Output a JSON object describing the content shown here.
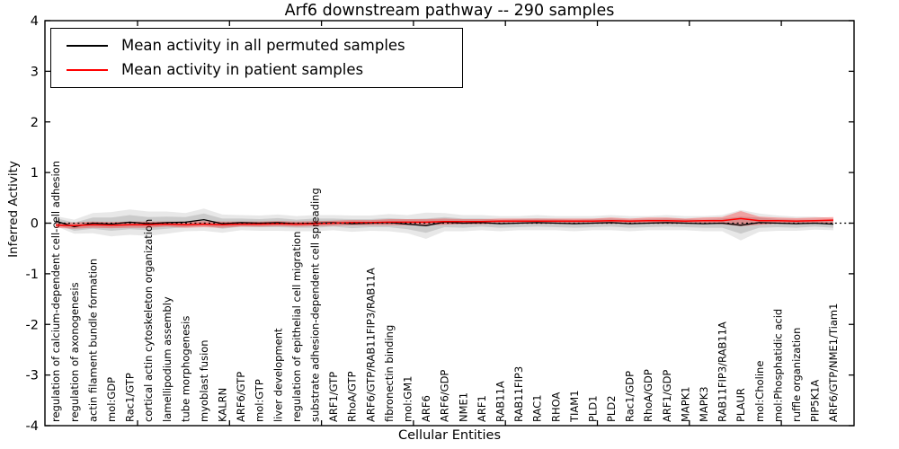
{
  "title": "Arf6 downstream pathway -- 290 samples",
  "axes": {
    "xlabel": "Cellular Entities",
    "ylabel": "Inferred Activity"
  },
  "legend": {
    "items": [
      {
        "label": "Mean activity in all permuted samples",
        "color": "#000000"
      },
      {
        "label": "Mean activity in patient samples",
        "color": "#ff0000"
      }
    ]
  },
  "chart_data": {
    "type": "line",
    "title": "Arf6 downstream pathway -- 290 samples",
    "xlabel": "Cellular Entities",
    "ylabel": "Inferred Activity",
    "ylim": [
      -4,
      4
    ],
    "yticks": [
      4,
      3,
      2,
      1,
      0,
      -1,
      -2,
      -3,
      -4
    ],
    "grid": false,
    "legend_position": "upper left",
    "categories": [
      "regulation of calcium-dependent cell-cell adhesion",
      "regulation of axonogenesis",
      "actin filament bundle formation",
      "mol:GDP",
      "Rac1/GTP",
      "cortical actin cytoskeleton organization",
      "lamellipodium assembly",
      "tube morphogenesis",
      "myoblast fusion",
      "KALRN",
      "ARF6/GTP",
      "mol:GTP",
      "liver development",
      "regulation of epithelial cell migration",
      "substrate adhesion-dependent cell spreading",
      "ARF1/GTP",
      "RhoA/GTP",
      "ARF6/GTP/RAB11FIP3/RAB11A",
      "fibronectin binding",
      "mol:GM1",
      "ARF6",
      "ARF6/GDP",
      "NME1",
      "ARF1",
      "RAB11A",
      "RAB11FIP3",
      "RAC1",
      "RHOA",
      "TIAM1",
      "PLD1",
      "PLD2",
      "Rac1/GDP",
      "RhoA/GDP",
      "ARF1/GDP",
      "MAPK1",
      "MAPK3",
      "RAB11FIP3/RAB11A",
      "PLAUR",
      "mol:Choline",
      "mol:Phosphatidic acid",
      "ruffle organization",
      "PIP5K1A",
      "ARF6/GTP/NME1/Tiam1"
    ],
    "series": [
      {
        "name": "Mean activity in all permuted samples",
        "color": "#000000",
        "style": "solid",
        "values": [
          0.04,
          -0.07,
          0.0,
          -0.02,
          0.02,
          -0.01,
          0.01,
          0.02,
          0.07,
          -0.01,
          0.01,
          0.0,
          0.01,
          -0.01,
          0.0,
          0.01,
          -0.01,
          0.0,
          0.01,
          -0.02,
          -0.05,
          0.02,
          0.0,
          0.01,
          -0.01,
          0.0,
          0.01,
          0.0,
          -0.01,
          0.0,
          0.01,
          -0.01,
          0.0,
          0.01,
          0.0,
          -0.01,
          0.0,
          -0.04,
          0.01,
          0.0,
          -0.01,
          0.0,
          -0.02
        ]
      },
      {
        "name": "Mean activity in patient samples",
        "color": "#ff0000",
        "style": "solid",
        "values": [
          -0.04,
          -0.05,
          -0.03,
          -0.04,
          -0.03,
          -0.03,
          -0.02,
          -0.03,
          -0.02,
          -0.03,
          -0.02,
          -0.02,
          -0.01,
          -0.02,
          -0.01,
          0.0,
          0.01,
          0.01,
          0.02,
          0.02,
          0.02,
          0.03,
          0.03,
          0.03,
          0.04,
          0.04,
          0.04,
          0.04,
          0.04,
          0.04,
          0.05,
          0.04,
          0.05,
          0.05,
          0.04,
          0.05,
          0.05,
          0.09,
          0.05,
          0.05,
          0.04,
          0.05,
          0.06
        ]
      }
    ],
    "bands": [
      {
        "name": "permuted-range-outer",
        "center_series": 0,
        "color": "#000000",
        "opacity": 0.09,
        "halfwidth": [
          0.1,
          0.14,
          0.2,
          0.24,
          0.25,
          0.24,
          0.22,
          0.18,
          0.22,
          0.18,
          0.15,
          0.15,
          0.16,
          0.15,
          0.16,
          0.15,
          0.16,
          0.15,
          0.17,
          0.18,
          0.26,
          0.18,
          0.16,
          0.15,
          0.15,
          0.14,
          0.15,
          0.14,
          0.15,
          0.14,
          0.15,
          0.15,
          0.14,
          0.15,
          0.14,
          0.15,
          0.16,
          0.3,
          0.18,
          0.15,
          0.14,
          0.13,
          0.12
        ]
      },
      {
        "name": "permuted-range-inner",
        "center_series": 0,
        "color": "#000000",
        "opacity": 0.12,
        "halfwidth": [
          0.06,
          0.08,
          0.11,
          0.13,
          0.14,
          0.13,
          0.12,
          0.1,
          0.12,
          0.1,
          0.08,
          0.08,
          0.09,
          0.08,
          0.09,
          0.08,
          0.09,
          0.08,
          0.09,
          0.1,
          0.14,
          0.1,
          0.09,
          0.08,
          0.08,
          0.08,
          0.08,
          0.08,
          0.08,
          0.08,
          0.08,
          0.08,
          0.08,
          0.08,
          0.08,
          0.08,
          0.09,
          0.17,
          0.1,
          0.08,
          0.08,
          0.07,
          0.07
        ]
      },
      {
        "name": "patient-range",
        "center_series": 1,
        "color": "#ff0000",
        "opacity": 0.3,
        "halfwidth": [
          0.05,
          0.06,
          0.06,
          0.06,
          0.06,
          0.06,
          0.05,
          0.06,
          0.06,
          0.06,
          0.05,
          0.05,
          0.05,
          0.05,
          0.05,
          0.05,
          0.05,
          0.05,
          0.06,
          0.06,
          0.06,
          0.06,
          0.05,
          0.05,
          0.05,
          0.05,
          0.05,
          0.05,
          0.05,
          0.05,
          0.06,
          0.05,
          0.06,
          0.06,
          0.05,
          0.06,
          0.07,
          0.15,
          0.08,
          0.06,
          0.06,
          0.06,
          0.06
        ]
      }
    ],
    "zero_line": {
      "value": 0,
      "style": "dotted",
      "color": "#000000"
    }
  }
}
